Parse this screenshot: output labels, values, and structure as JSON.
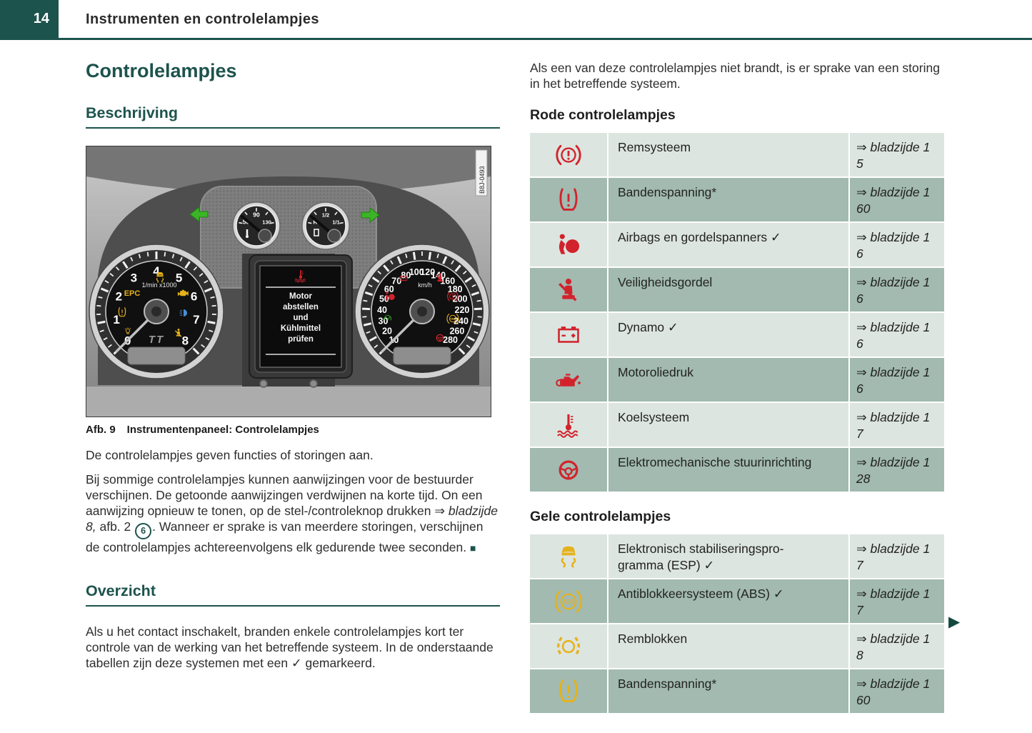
{
  "page": {
    "number": "14",
    "section_title": "Instrumenten en controlelampjes"
  },
  "colors": {
    "teal": "#1d534d",
    "red": "#d2232c",
    "yellow": "#e6b219",
    "row_light": "#dde5e0",
    "row_dark": "#a2bab0"
  },
  "left": {
    "title": "Controlelampjes",
    "description_heading": "Beschrijving",
    "figure": {
      "caption_label": "Afb. 9",
      "caption_text": "Instrumentenpaneel: Controlelampjes",
      "image_code": "B8J-0493",
      "tachometer": {
        "numbers": [
          "0",
          "1",
          "2",
          "3",
          "4",
          "5",
          "6",
          "7",
          "8"
        ],
        "unit": "1/min x1000",
        "epc": "EPC",
        "logo": "TT"
      },
      "speedometer": {
        "numbers": [
          "10",
          "20",
          "30",
          "40",
          "50",
          "60",
          "70",
          "80",
          "100",
          "120",
          "140",
          "160",
          "180",
          "200",
          "220",
          "240",
          "260",
          "280"
        ],
        "unit": "km/h"
      },
      "temp_gauge": {
        "labels": [
          "50",
          "90",
          "130"
        ],
        "unit": "°C"
      },
      "fuel_gauge": {
        "labels": [
          "R",
          "1/2",
          "1/1"
        ]
      },
      "display_lines": [
        "Motor",
        "abstellen",
        "und",
        "Kühlmittel",
        "prüfen"
      ]
    },
    "para1": "De controlelampjes geven functies of storingen aan.",
    "para2": {
      "part1": "Bij sommige controlelampjes kunnen aanwijzingen voor de bestuurder verschijnen. De getoonde aanwijzingen verdwijnen na korte tijd. On een aanwijzing opnieuw te tonen, op de stel-/controleknop drukken ",
      "arrow": "⇒",
      "ref_italic": "bladzijde 8,",
      "part2": "afb. 2",
      "circled_number": "6",
      "part3": ". Wanneer er sprake is van meerdere storingen, verschijnen de controlelampjes achtereenvolgens elk gedurende twee seconden.",
      "end_square": "■"
    },
    "overview_heading": "Overzicht",
    "para3": "Als u het contact inschakelt, branden enkele controlelampjes kort ter controle van de werking van het betreffende systeem. In de onderstaande tabellen zijn deze systemen met een ✓ gemarkeerd."
  },
  "right": {
    "intro": "Als een van deze controlelampjes niet brandt, is er sprake van een storing in het betreffende systeem.",
    "red_heading": "Rode controlelampjes",
    "red_rows": [
      {
        "icon": "brake-warning",
        "label": "Remsysteem",
        "ref_line1": "⇒ bladzijde 1",
        "ref_line2": "5"
      },
      {
        "icon": "tire-pressure",
        "label": "Bandenspanning*",
        "ref_line1": "⇒ bladzijde 1",
        "ref_line2": "60"
      },
      {
        "icon": "airbag",
        "label": "Airbags en gordelspanners ✓",
        "ref_line1": "⇒ bladzijde 1",
        "ref_line2": "6"
      },
      {
        "icon": "seatbelt",
        "label": "Veiligheidsgordel",
        "ref_line1": "⇒ bladzijde 1",
        "ref_line2": "6"
      },
      {
        "icon": "battery",
        "label": "Dynamo ✓",
        "ref_line1": "⇒ bladzijde 1",
        "ref_line2": "6"
      },
      {
        "icon": "oil-pressure",
        "label": "Motoroliedruk",
        "ref_line1": "⇒ bladzijde 1",
        "ref_line2": "6"
      },
      {
        "icon": "coolant",
        "label": "Koelsysteem",
        "ref_line1": "⇒ bladzijde 1",
        "ref_line2": "7"
      },
      {
        "icon": "steering",
        "label": "Elektromechanische stuurinrichting",
        "ref_line1": "⇒ bladzijde 1",
        "ref_line2": "28"
      }
    ],
    "yellow_heading": "Gele controlelampjes",
    "yellow_rows": [
      {
        "icon": "esp",
        "label_lines": [
          "Elektronisch stabiliseringspro-",
          "gramma (ESP) ✓"
        ],
        "ref_line1": "⇒ bladzijde 1",
        "ref_line2": "7"
      },
      {
        "icon": "abs",
        "label_lines": [
          "Antiblokkeersysteem (ABS) ✓"
        ],
        "ref_line1": "⇒ bladzijde 1",
        "ref_line2": "7"
      },
      {
        "icon": "brake-pads",
        "label_lines": [
          "Remblokken"
        ],
        "ref_line1": "⇒ bladzijde 1",
        "ref_line2": "8"
      },
      {
        "icon": "tire-pressure",
        "label_lines": [
          "Bandenspanning*"
        ],
        "ref_line1": "⇒ bladzijde 1",
        "ref_line2": "60"
      }
    ],
    "continuation_marker": "▶"
  }
}
